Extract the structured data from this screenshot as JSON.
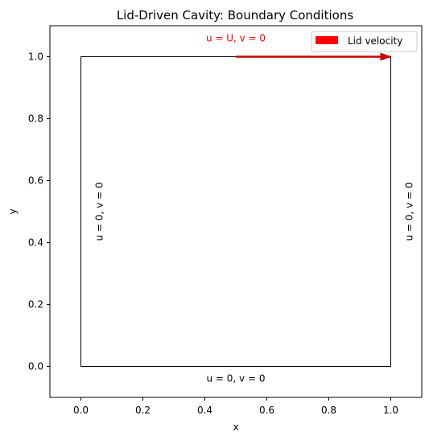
{
  "title": "Lid-Driven Cavity: Boundary Conditions",
  "chart_data": {
    "type": "diagram",
    "xlabel": "x",
    "ylabel": "y",
    "xlim": [
      -0.1,
      1.1
    ],
    "ylim": [
      -0.1,
      1.1
    ],
    "xticks": [
      0.0,
      0.2,
      0.4,
      0.6,
      0.8,
      1.0
    ],
    "yticks": [
      0.0,
      0.2,
      0.4,
      0.6,
      0.8,
      1.0
    ],
    "xtick_labels": [
      "0.0",
      "0.2",
      "0.4",
      "0.6",
      "0.8",
      "1.0"
    ],
    "ytick_labels": [
      "0.0",
      "0.2",
      "0.4",
      "0.6",
      "0.8",
      "1.0"
    ],
    "grid": false,
    "cavity": {
      "x": [
        0,
        1
      ],
      "y": [
        0,
        1
      ]
    },
    "lid_arrow": {
      "x_start": 0.5,
      "x_end": 1.0,
      "y": 1.0,
      "color": "#ff0000"
    },
    "annotations": {
      "top": {
        "text": "u = U, v = 0",
        "color": "#ff0000"
      },
      "bottom": {
        "text": "u = 0, v = 0"
      },
      "left": {
        "text": "u = 0, v = 0"
      },
      "right": {
        "text": "u = 0, v = 0"
      }
    },
    "legend": {
      "position": "top-right",
      "entries": [
        {
          "label": "Lid velocity",
          "color": "#ff0000"
        }
      ]
    }
  }
}
